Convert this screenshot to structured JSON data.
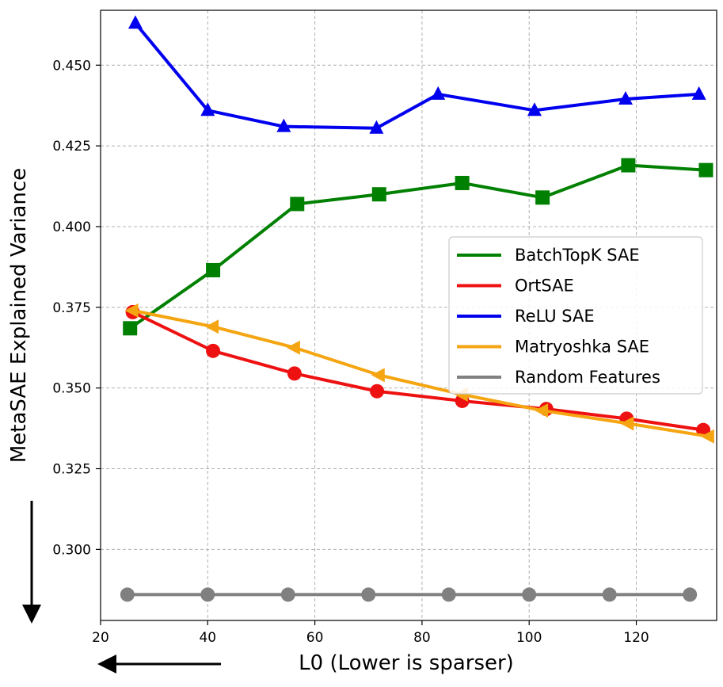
{
  "chart_data": {
    "type": "line",
    "title": "",
    "xlabel": "L0 (Lower is sparser)",
    "ylabel": "MetaSAE Explained Variance",
    "xlim": [
      20,
      135
    ],
    "ylim": [
      0.278,
      0.467
    ],
    "x_ticks": [
      20,
      40,
      60,
      80,
      100,
      120
    ],
    "x_tick_labels": [
      "20",
      "40",
      "60",
      "80",
      "100",
      "120"
    ],
    "y_ticks": [
      0.3,
      0.325,
      0.35,
      0.375,
      0.4,
      0.425,
      0.45
    ],
    "y_tick_labels": [
      "0.300",
      "0.325",
      "0.350",
      "0.375",
      "0.400",
      "0.425",
      "0.450"
    ],
    "grid": true,
    "legend_position": "center-right",
    "series": [
      {
        "name": "BatchTopK SAE",
        "color": "#008000",
        "marker": "square",
        "x": [
          25.5,
          41,
          56.7,
          72,
          87.5,
          102.5,
          118.5,
          133
        ],
        "y": [
          0.3685,
          0.3865,
          0.407,
          0.41,
          0.4135,
          0.409,
          0.419,
          0.4175
        ]
      },
      {
        "name": "OrtSAE",
        "color": "#ee1111",
        "marker": "circle",
        "x": [
          26,
          41,
          56.2,
          71.6,
          87.5,
          103.2,
          118.2,
          132.5
        ],
        "y": [
          0.3735,
          0.3615,
          0.3545,
          0.349,
          0.346,
          0.3435,
          0.3405,
          0.337
        ]
      },
      {
        "name": "ReLU SAE",
        "color": "#0000ee",
        "marker": "triangle-up",
        "x": [
          26.5,
          40,
          54.2,
          71.5,
          83,
          101,
          118,
          131.7
        ],
        "y": [
          0.463,
          0.436,
          0.431,
          0.4305,
          0.441,
          0.436,
          0.4395,
          0.441
        ]
      },
      {
        "name": "Matryoshka SAE",
        "color": "#f5a511",
        "marker": "triangle-left",
        "x": [
          26,
          41,
          56.2,
          72,
          87.5,
          102.5,
          118.5,
          133.5
        ],
        "y": [
          0.374,
          0.369,
          0.3625,
          0.354,
          0.348,
          0.343,
          0.339,
          0.335
        ]
      },
      {
        "name": "Random Features",
        "color": "#808080",
        "marker": "circle",
        "x": [
          25,
          40,
          55,
          70,
          85,
          100,
          115,
          130
        ],
        "y": [
          0.286,
          0.286,
          0.286,
          0.286,
          0.286,
          0.286,
          0.286,
          0.286
        ]
      }
    ]
  }
}
